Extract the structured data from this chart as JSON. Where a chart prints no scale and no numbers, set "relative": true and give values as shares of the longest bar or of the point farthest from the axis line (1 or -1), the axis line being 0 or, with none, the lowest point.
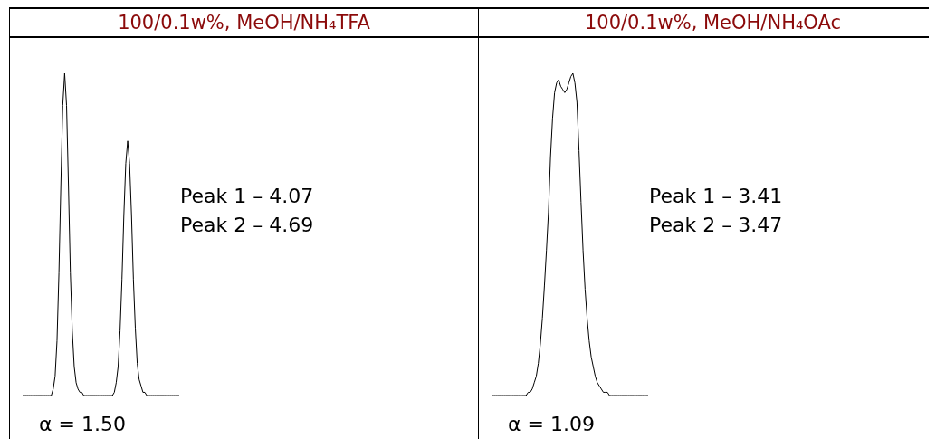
{
  "chart_data": [
    {
      "type": "line",
      "title": "100/0.1w%, MeOH/NH₄TFA",
      "relative": true,
      "categories": [
        null,
        null,
        null,
        null,
        null,
        null,
        null,
        null,
        null,
        null,
        null,
        null,
        null,
        null,
        null,
        null,
        null,
        null,
        null,
        null,
        null,
        null,
        null,
        null,
        null,
        null,
        null,
        null,
        null,
        null,
        null,
        null,
        null,
        null,
        null,
        null,
        null,
        null,
        null,
        null,
        null,
        null,
        null,
        null,
        null,
        null,
        null,
        null,
        null,
        null,
        null,
        null,
        null,
        null,
        null,
        null,
        null,
        null,
        null,
        null,
        null,
        null,
        null,
        null,
        null,
        null,
        null,
        null,
        null,
        null,
        null,
        null,
        null,
        null,
        null,
        null,
        null,
        null,
        null,
        null,
        null,
        null,
        null
      ],
      "series": [
        {
          "color": "#000000",
          "values": [
            0,
            0,
            0,
            0,
            0,
            0,
            0,
            0,
            0,
            0,
            0,
            0,
            0,
            0,
            0,
            0,
            0.02,
            0.06,
            0.17,
            0.38,
            0.65,
            0.9,
            1,
            0.9,
            0.65,
            0.38,
            0.2,
            0.09,
            0.04,
            0.02,
            0.01,
            0.01,
            0,
            0,
            0,
            0,
            0,
            0,
            0,
            0,
            0,
            0,
            0,
            0,
            0,
            0,
            0,
            0,
            0.01,
            0.04,
            0.09,
            0.2,
            0.36,
            0.56,
            0.72,
            0.79,
            0.72,
            0.56,
            0.36,
            0.21,
            0.1,
            0.05,
            0.03,
            0.01,
            0.01,
            0,
            0,
            0,
            0,
            0,
            0,
            0,
            0,
            0,
            0,
            0,
            0,
            0,
            0,
            0,
            0,
            0,
            0
          ]
        }
      ],
      "annotations": [
        "Peak 1 – 4.07",
        "Peak 2 – 4.69",
        "α = 1.50"
      ]
    },
    {
      "type": "line",
      "title": "100/0.1w%, MeOH/NH₄OAc",
      "relative": true,
      "categories": [
        null,
        null,
        null,
        null,
        null,
        null,
        null,
        null,
        null,
        null,
        null,
        null,
        null,
        null,
        null,
        null,
        null,
        null,
        null,
        null,
        null,
        null,
        null,
        null,
        null,
        null,
        null,
        null,
        null,
        null,
        null,
        null,
        null,
        null,
        null,
        null,
        null,
        null,
        null,
        null,
        null,
        null,
        null,
        null,
        null,
        null,
        null,
        null,
        null,
        null,
        null,
        null,
        null,
        null,
        null,
        null,
        null,
        null,
        null,
        null,
        null,
        null,
        null,
        null,
        null,
        null,
        null,
        null,
        null,
        null,
        null,
        null,
        null,
        null,
        null,
        null,
        null,
        null
      ],
      "series": [
        {
          "color": "#000000",
          "values": [
            0,
            0,
            0,
            0,
            0,
            0,
            0,
            0,
            0,
            0,
            0,
            0,
            0,
            0,
            0,
            0,
            0,
            0,
            0.01,
            0.01,
            0.02,
            0.04,
            0.06,
            0.1,
            0.16,
            0.24,
            0.34,
            0.45,
            0.57,
            0.74,
            0.86,
            0.94,
            0.97,
            0.98,
            0.96,
            0.95,
            0.94,
            0.95,
            0.97,
            0.99,
            1,
            0.97,
            0.91,
            0.76,
            0.6,
            0.45,
            0.33,
            0.24,
            0.17,
            0.12,
            0.09,
            0.06,
            0.04,
            0.03,
            0.02,
            0.01,
            0.01,
            0.01,
            0,
            0,
            0,
            0,
            0,
            0,
            0,
            0,
            0,
            0,
            0,
            0,
            0,
            0,
            0,
            0,
            0,
            0,
            0,
            0
          ]
        }
      ],
      "annotations": [
        "Peak 1 – 3.41",
        "Peak 2 – 3.47",
        "α = 1.09"
      ]
    }
  ]
}
